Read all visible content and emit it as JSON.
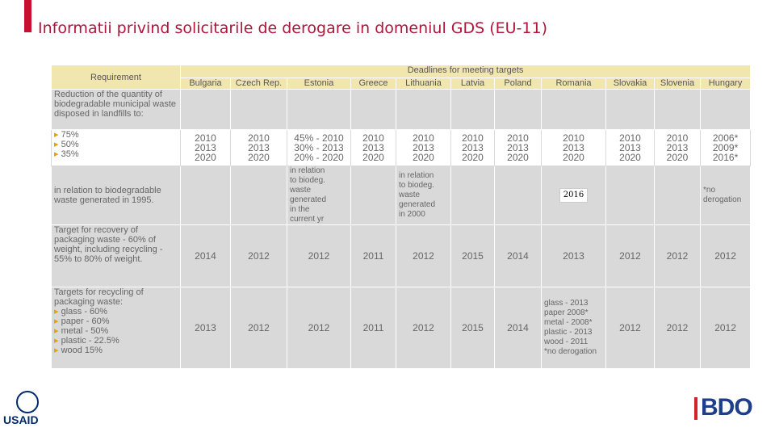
{
  "header": {
    "title": "Informatii privind solicitarile de derogare in domeniul GDS (EU-11)"
  },
  "table": {
    "requirement_header": "Requirement",
    "deadlines_header": "Deadlines for meeting targets",
    "countries": [
      "Bulgaria",
      "Czech Rep.",
      "Estonia",
      "Greece",
      "Lithuania",
      "Latvia",
      "Poland",
      "Romania",
      "Slovakia",
      "Slovenia",
      "Hungary"
    ],
    "rows": [
      {
        "requirement": "Reduction of the quantity of biodegradable municipal waste disposed in landfills to:",
        "bullets": [
          "75%",
          "50%",
          "35%"
        ],
        "cells": [
          [
            "2010",
            "2013",
            "2020"
          ],
          [
            "2010",
            "2013",
            "2020"
          ],
          [
            "45% - 2010",
            "30% - 2013",
            "20% - 2020"
          ],
          [
            "2010",
            "2013",
            "2020"
          ],
          [
            "2010",
            "2013",
            "2020"
          ],
          [
            "2010",
            "2013",
            "2020"
          ],
          [
            "2010",
            "2013",
            "2020"
          ],
          [
            "2010",
            "2013",
            "2020"
          ],
          [
            "2010",
            "2013",
            "2020"
          ],
          [
            "2010",
            "2013",
            "2020"
          ],
          [
            "2006*",
            "2009*",
            "2016*"
          ]
        ]
      },
      {
        "requirement": "in relation to biodegradable waste generated in 1995.",
        "cells": [
          null,
          null,
          [
            "in relation",
            "to biodeg.",
            "waste",
            "generated",
            "in the",
            "current yr"
          ],
          null,
          [
            "in relation",
            "to biodeg.",
            "waste",
            "generated",
            "in 2000"
          ],
          null,
          null,
          [
            "2016"
          ],
          null,
          null,
          [
            "*no",
            "derogation"
          ]
        ]
      },
      {
        "requirement": "Target for recovery of packaging waste - 60% of weight, including recycling - 55% to 80% of weight.",
        "cells": [
          [
            "2014"
          ],
          [
            "2012"
          ],
          [
            "2012"
          ],
          [
            "2011"
          ],
          [
            "2012"
          ],
          [
            "2015"
          ],
          [
            "2014"
          ],
          [
            "2013"
          ],
          [
            "2012"
          ],
          [
            "2012"
          ],
          [
            "2012"
          ]
        ]
      },
      {
        "requirement": "Targets for recycling of packaging waste:",
        "bullets": [
          "glass - 60%",
          "paper - 60%",
          "metal - 50%",
          "plastic - 22.5%",
          "wood   15%"
        ],
        "cells": [
          [
            "2013"
          ],
          [
            "2012"
          ],
          [
            "2012"
          ],
          [
            "2011"
          ],
          [
            "2012"
          ],
          [
            "2015"
          ],
          [
            "2014"
          ],
          [
            "glass - 2013",
            "paper   2008*",
            "metal - 2008*",
            "plastic - 2013",
            "wood - 2011",
            "*no derogation"
          ],
          [
            "2012"
          ],
          [
            "2012"
          ],
          [
            "2012"
          ]
        ]
      }
    ]
  },
  "logos": {
    "left": "USAID",
    "right": "BDO"
  }
}
